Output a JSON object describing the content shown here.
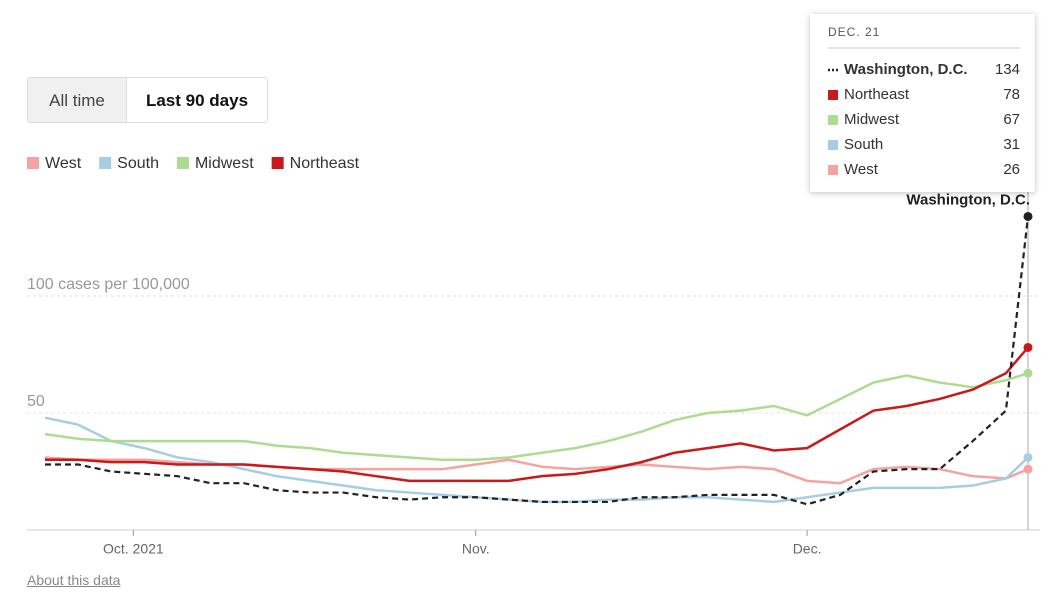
{
  "controls": {
    "all_time": "All time",
    "last_90_days": "Last 90 days"
  },
  "about_link": "About this data",
  "tooltip_date": "DEC. 21",
  "chart_data": {
    "type": "line",
    "x": [
      0,
      3,
      6,
      9,
      12,
      15,
      18,
      21,
      24,
      27,
      30,
      33,
      36,
      39,
      42,
      45,
      48,
      51,
      54,
      57,
      60,
      63,
      66,
      69,
      72,
      75,
      78,
      81,
      84,
      87,
      89
    ],
    "xlim": [
      0,
      89
    ],
    "xticks": [
      {
        "value": 8,
        "label": "Oct. 2021"
      },
      {
        "value": 39,
        "label": "Nov."
      },
      {
        "value": 69,
        "label": "Dec."
      }
    ],
    "ylim": [
      0,
      145
    ],
    "yticks": [
      {
        "value": 50,
        "label": "50"
      },
      {
        "value": 100,
        "label": "100 cases per 100,000"
      }
    ],
    "grid": true,
    "series": [
      {
        "name": "Washington, D.C.",
        "color": "#222222",
        "dashed": true,
        "in_legend": false,
        "values": [
          28,
          28,
          25,
          24,
          23,
          20,
          20,
          17,
          16,
          16,
          14,
          13,
          14,
          14,
          13,
          12,
          12,
          12,
          14,
          14,
          15,
          15,
          15,
          11,
          15,
          25,
          26,
          26,
          38,
          51,
          134
        ]
      },
      {
        "name": "Northeast",
        "color": "#c81a1a",
        "dashed": false,
        "in_legend": true,
        "values": [
          30,
          30,
          29,
          29,
          28,
          28,
          28,
          27,
          26,
          25,
          23,
          21,
          21,
          21,
          21,
          23,
          24,
          26,
          29,
          33,
          35,
          37,
          34,
          35,
          43,
          51,
          53,
          56,
          60,
          67,
          78
        ]
      },
      {
        "name": "Midwest",
        "color": "#addc91",
        "dashed": false,
        "in_legend": true,
        "values": [
          41,
          39,
          38,
          38,
          38,
          38,
          38,
          36,
          35,
          33,
          32,
          31,
          30,
          30,
          31,
          33,
          35,
          38,
          42,
          47,
          50,
          51,
          53,
          49,
          56,
          63,
          66,
          63,
          61,
          64,
          67
        ]
      },
      {
        "name": "South",
        "color": "#a6cee3",
        "dashed": false,
        "in_legend": true,
        "values": [
          48,
          45,
          38,
          35,
          31,
          29,
          26,
          23,
          21,
          19,
          17,
          16,
          15,
          14,
          13,
          12,
          12,
          13,
          13,
          14,
          14,
          13,
          12,
          14,
          16,
          18,
          18,
          18,
          19,
          22,
          31
        ]
      },
      {
        "name": "West",
        "color": "#f4a3a0",
        "dashed": false,
        "in_legend": true,
        "values": [
          31,
          30,
          30,
          30,
          29,
          28,
          28,
          27,
          26,
          26,
          26,
          26,
          26,
          28,
          30,
          27,
          26,
          27,
          28,
          27,
          26,
          27,
          26,
          21,
          20,
          26,
          27,
          26,
          23,
          22,
          26
        ]
      }
    ]
  }
}
